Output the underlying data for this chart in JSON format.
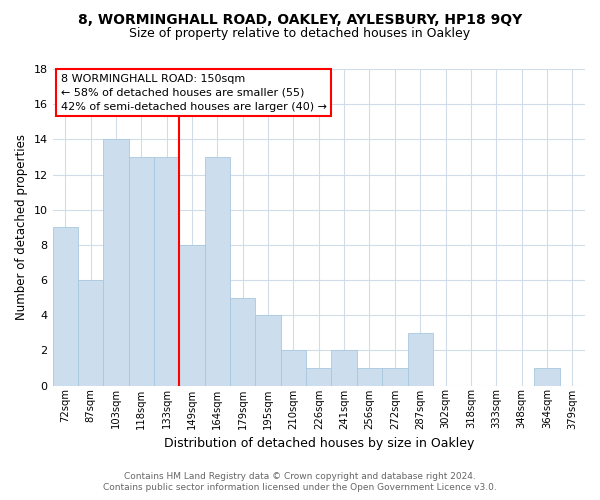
{
  "title": "8, WORMINGHALL ROAD, OAKLEY, AYLESBURY, HP18 9QY",
  "subtitle": "Size of property relative to detached houses in Oakley",
  "xlabel": "Distribution of detached houses by size in Oakley",
  "ylabel": "Number of detached properties",
  "bar_labels": [
    "72sqm",
    "87sqm",
    "103sqm",
    "118sqm",
    "133sqm",
    "149sqm",
    "164sqm",
    "179sqm",
    "195sqm",
    "210sqm",
    "226sqm",
    "241sqm",
    "256sqm",
    "272sqm",
    "287sqm",
    "302sqm",
    "318sqm",
    "333sqm",
    "348sqm",
    "364sqm",
    "379sqm"
  ],
  "bar_values": [
    9,
    6,
    14,
    13,
    13,
    8,
    13,
    5,
    4,
    2,
    1,
    2,
    1,
    1,
    3,
    0,
    0,
    0,
    0,
    1,
    0
  ],
  "bar_color": "#ccdded",
  "bar_edge_color": "#a8c8e0",
  "vline_color": "red",
  "vline_index": 5,
  "ylim": [
    0,
    18
  ],
  "yticks": [
    0,
    2,
    4,
    6,
    8,
    10,
    12,
    14,
    16,
    18
  ],
  "annotation_title": "8 WORMINGHALL ROAD: 150sqm",
  "annotation_line1": "← 58% of detached houses are smaller (55)",
  "annotation_line2": "42% of semi-detached houses are larger (40) →",
  "footer_line1": "Contains HM Land Registry data © Crown copyright and database right 2024.",
  "footer_line2": "Contains public sector information licensed under the Open Government Licence v3.0.",
  "grid_color": "#d0dce8",
  "title_fontsize": 10,
  "subtitle_fontsize": 9
}
